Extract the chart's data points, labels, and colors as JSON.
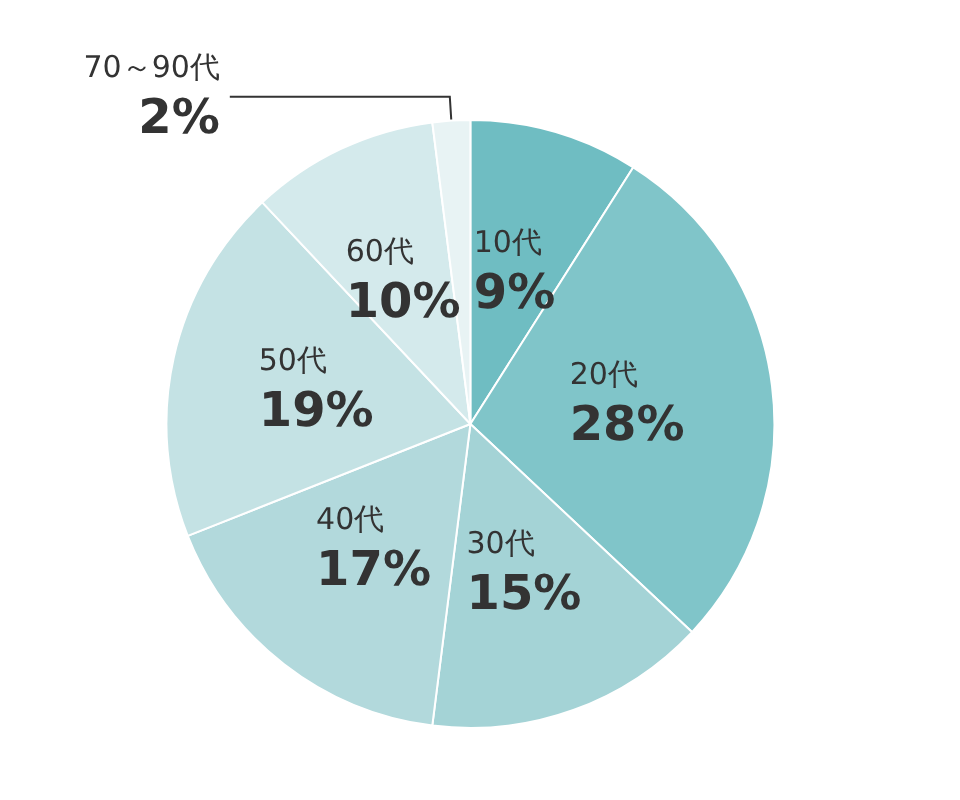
{
  "chart_data": {
    "type": "pie",
    "categories": [
      "10代",
      "20代",
      "30代",
      "40代",
      "50代",
      "60代",
      "70～90代"
    ],
    "values": [
      9,
      28,
      15,
      17,
      19,
      10,
      2
    ],
    "value_labels": [
      "9%",
      "28%",
      "15%",
      "17%",
      "19%",
      "10%",
      "2%"
    ],
    "colors": [
      "#6fbdc2",
      "#80c5c9",
      "#a4d3d6",
      "#b2d9dc",
      "#c4e2e4",
      "#d4eaec",
      "#e8f3f4"
    ]
  }
}
